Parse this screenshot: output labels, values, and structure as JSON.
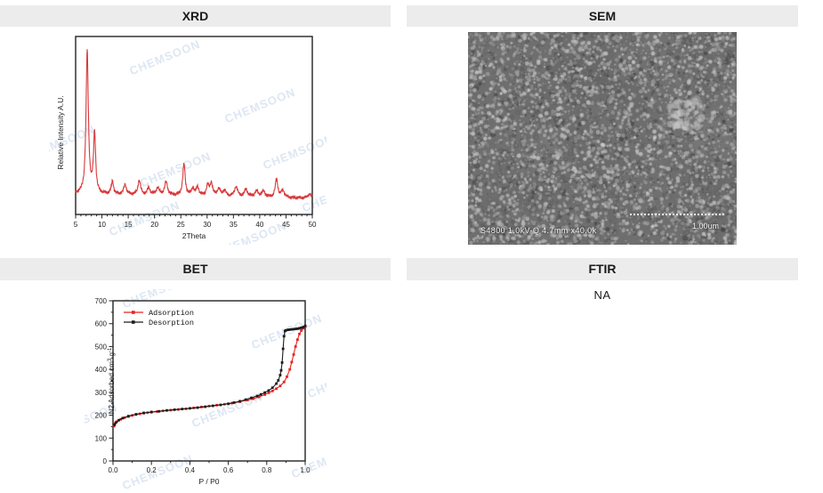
{
  "header_bg": "#ececec",
  "watermark": {
    "text": "CHEMSOON",
    "color": "#dde7f3"
  },
  "panels": {
    "xrd": {
      "title": "XRD"
    },
    "sem": {
      "title": "SEM",
      "caption": "S4800 1.0kV-Q 4.7mm x40.0k",
      "scale_label": "1.00um"
    },
    "bet": {
      "title": "BET"
    },
    "ftir": {
      "title": "FTIR",
      "content": "NA"
    }
  },
  "chart_data": [
    {
      "name": "xrd",
      "type": "line",
      "title": "XRD",
      "xlabel": "2Theta",
      "ylabel": "Relative Intensity A.U.",
      "xlim": [
        5,
        50
      ],
      "xticks": [
        5,
        10,
        15,
        20,
        25,
        30,
        35,
        40,
        45,
        50
      ],
      "minor_tick_step": 1,
      "grid": false,
      "line_color": "#d8393b",
      "baseline": 0.07,
      "peaks": [
        {
          "two_theta": 7.2,
          "intensity": 1.0,
          "width": 0.26
        },
        {
          "two_theta": 8.6,
          "intensity": 0.42,
          "width": 0.24
        },
        {
          "two_theta": 12.0,
          "intensity": 0.09,
          "width": 0.25
        },
        {
          "two_theta": 14.4,
          "intensity": 0.07,
          "width": 0.3
        },
        {
          "two_theta": 17.1,
          "intensity": 0.1,
          "width": 0.3
        },
        {
          "two_theta": 18.9,
          "intensity": 0.05,
          "width": 0.3
        },
        {
          "two_theta": 20.6,
          "intensity": 0.05,
          "width": 0.35
        },
        {
          "two_theta": 22.2,
          "intensity": 0.09,
          "width": 0.35
        },
        {
          "two_theta": 25.6,
          "intensity": 0.22,
          "width": 0.28
        },
        {
          "two_theta": 27.3,
          "intensity": 0.05,
          "width": 0.3
        },
        {
          "two_theta": 28.2,
          "intensity": 0.06,
          "width": 0.3
        },
        {
          "two_theta": 30.1,
          "intensity": 0.07,
          "width": 0.3
        },
        {
          "two_theta": 30.8,
          "intensity": 0.09,
          "width": 0.28
        },
        {
          "two_theta": 32.2,
          "intensity": 0.05,
          "width": 0.35
        },
        {
          "two_theta": 33.3,
          "intensity": 0.04,
          "width": 0.35
        },
        {
          "two_theta": 35.5,
          "intensity": 0.07,
          "width": 0.35
        },
        {
          "two_theta": 37.4,
          "intensity": 0.05,
          "width": 0.35
        },
        {
          "two_theta": 39.4,
          "intensity": 0.04,
          "width": 0.4
        },
        {
          "two_theta": 40.7,
          "intensity": 0.04,
          "width": 0.4
        },
        {
          "two_theta": 43.2,
          "intensity": 0.13,
          "width": 0.28
        },
        {
          "two_theta": 44.4,
          "intensity": 0.05,
          "width": 0.35
        },
        {
          "two_theta": 49.5,
          "intensity": 0.03,
          "width": 0.4
        }
      ]
    },
    {
      "name": "bet",
      "type": "scatter-line",
      "title": "BET",
      "xlabel": "P / P0",
      "ylabel_parts": [
        {
          "t": "N2 Adsorbed cm"
        },
        {
          "t": "3",
          "sup": true
        },
        {
          "t": " g"
        },
        {
          "t": "-1",
          "sup": true
        }
      ],
      "xlim": [
        0.0,
        1.0
      ],
      "ylim": [
        0,
        700
      ],
      "xticks": [
        0.0,
        0.2,
        0.4,
        0.6,
        0.8,
        1.0
      ],
      "yticks": [
        0,
        100,
        200,
        300,
        400,
        500,
        600,
        700
      ],
      "grid": false,
      "legend_position": "upper-left",
      "series": [
        {
          "name": "Adsorption",
          "color": "#e8231f",
          "points": [
            [
              0.005,
              152
            ],
            [
              0.01,
              163
            ],
            [
              0.02,
              172
            ],
            [
              0.04,
              182
            ],
            [
              0.06,
              189
            ],
            [
              0.08,
              194
            ],
            [
              0.1,
              199
            ],
            [
              0.12,
              203
            ],
            [
              0.14,
              206
            ],
            [
              0.16,
              209
            ],
            [
              0.18,
              211
            ],
            [
              0.2,
              213
            ],
            [
              0.23,
              216
            ],
            [
              0.26,
              219
            ],
            [
              0.3,
              222
            ],
            [
              0.34,
              225
            ],
            [
              0.38,
              228
            ],
            [
              0.42,
              232
            ],
            [
              0.46,
              236
            ],
            [
              0.5,
              240
            ],
            [
              0.54,
              244
            ],
            [
              0.58,
              248
            ],
            [
              0.62,
              253
            ],
            [
              0.66,
              259
            ],
            [
              0.7,
              266
            ],
            [
              0.73,
              272
            ],
            [
              0.76,
              280
            ],
            [
              0.79,
              290
            ],
            [
              0.81,
              298
            ],
            [
              0.83,
              306
            ],
            [
              0.85,
              316
            ],
            [
              0.87,
              328
            ],
            [
              0.89,
              345
            ],
            [
              0.905,
              368
            ],
            [
              0.92,
              400
            ],
            [
              0.93,
              432
            ],
            [
              0.94,
              465
            ],
            [
              0.95,
              500
            ],
            [
              0.96,
              530
            ],
            [
              0.97,
              555
            ],
            [
              0.98,
              570
            ],
            [
              0.99,
              580
            ],
            [
              1.0,
              587
            ]
          ]
        },
        {
          "name": "Desorption",
          "color": "#1c1c1c",
          "points": [
            [
              1.0,
              590
            ],
            [
              0.99,
              585
            ],
            [
              0.98,
              582
            ],
            [
              0.97,
              580
            ],
            [
              0.96,
              578
            ],
            [
              0.95,
              577
            ],
            [
              0.94,
              576
            ],
            [
              0.93,
              575
            ],
            [
              0.92,
              574
            ],
            [
              0.91,
              573
            ],
            [
              0.9,
              571
            ],
            [
              0.895,
              568
            ],
            [
              0.89,
              545
            ],
            [
              0.885,
              490
            ],
            [
              0.88,
              430
            ],
            [
              0.875,
              396
            ],
            [
              0.87,
              375
            ],
            [
              0.86,
              352
            ],
            [
              0.85,
              338
            ],
            [
              0.83,
              320
            ],
            [
              0.81,
              308
            ],
            [
              0.79,
              299
            ],
            [
              0.77,
              291
            ],
            [
              0.75,
              284
            ],
            [
              0.72,
              276
            ],
            [
              0.69,
              268
            ],
            [
              0.66,
              261
            ],
            [
              0.63,
              255
            ],
            [
              0.6,
              250
            ],
            [
              0.56,
              245
            ],
            [
              0.52,
              241
            ],
            [
              0.48,
              237
            ],
            [
              0.44,
              233
            ],
            [
              0.4,
              230
            ],
            [
              0.36,
              227
            ],
            [
              0.32,
              224
            ],
            [
              0.28,
              221
            ],
            [
              0.24,
              217
            ],
            [
              0.2,
              214
            ],
            [
              0.16,
              210
            ],
            [
              0.12,
              204
            ],
            [
              0.08,
              196
            ],
            [
              0.05,
              187
            ],
            [
              0.03,
              178
            ],
            [
              0.015,
              168
            ],
            [
              0.008,
              158
            ]
          ]
        }
      ]
    }
  ]
}
